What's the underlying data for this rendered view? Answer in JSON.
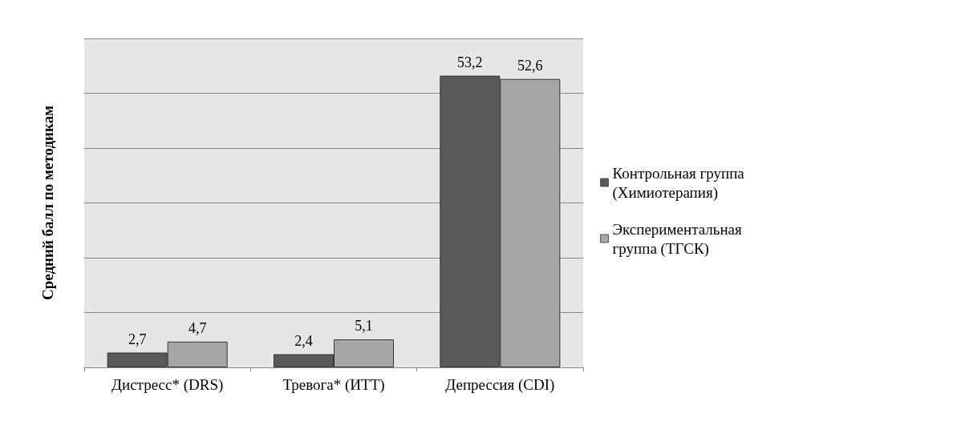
{
  "chart_data": {
    "type": "bar",
    "ylabel": "Средний балл по методикам",
    "categories": [
      "Дистресс* (DRS)",
      "Тревога* (ИТТ)",
      "Депрессия (CDI)"
    ],
    "grid": "y",
    "legend": "right",
    "series": [
      {
        "name": "Контрольная группа (Химиотерапия)",
        "color": "#595959",
        "values": [
          2.7,
          2.4,
          53.2
        ],
        "value_labels": [
          "2,7",
          "2,4",
          "53,2"
        ]
      },
      {
        "name": "Экспериментальная группа (ТГСК)",
        "color": "#a6a6a6",
        "values": [
          4.7,
          5.1,
          52.6
        ],
        "value_labels": [
          "4,7",
          "5,1",
          "52,6"
        ]
      }
    ]
  }
}
